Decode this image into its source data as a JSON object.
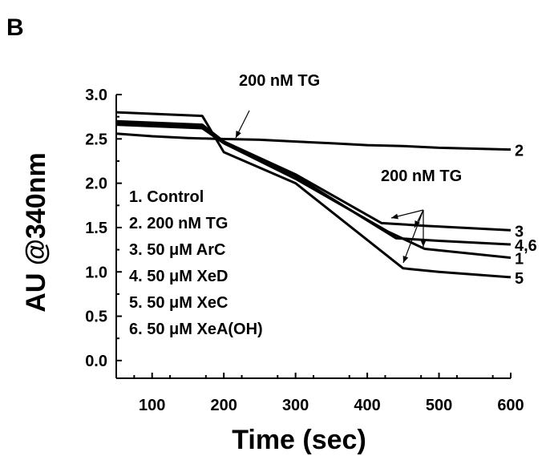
{
  "chart_data": {
    "type": "line",
    "panel_label": "B",
    "xlabel": "Time (sec)",
    "ylabel": "AU @340nm",
    "xlim": [
      50,
      600
    ],
    "ylim": [
      -0.2,
      3.0
    ],
    "xticks": [
      "100",
      "200",
      "300",
      "400",
      "500",
      "600"
    ],
    "yticks": [
      "0.0",
      "0.5",
      "1.0",
      "1.5",
      "2.0",
      "2.5",
      "3.0"
    ],
    "grid": false,
    "legend": [
      "1. Control",
      "2. 200 nM TG",
      "3. 50 μM ArC",
      "4. 50 μM XeD",
      "5. 50 μM XeC",
      "6. 50 μM XeA(OH)"
    ],
    "annotations": [
      "200 nM TG",
      "200 nM TG"
    ],
    "series": [
      {
        "label": "1",
        "x": [
          50,
          170,
          200,
          300,
          430,
          480,
          600
        ],
        "y": [
          2.66,
          2.62,
          2.45,
          2.05,
          1.45,
          1.26,
          1.16
        ]
      },
      {
        "label": "2",
        "x": [
          50,
          100,
          150,
          190,
          250,
          300,
          350,
          400,
          450,
          500,
          550,
          600
        ],
        "y": [
          2.56,
          2.53,
          2.51,
          2.5,
          2.49,
          2.47,
          2.45,
          2.43,
          2.42,
          2.4,
          2.39,
          2.38
        ]
      },
      {
        "label": "3",
        "x": [
          50,
          170,
          200,
          300,
          420,
          480,
          600
        ],
        "y": [
          2.68,
          2.64,
          2.47,
          2.1,
          1.55,
          1.52,
          1.47
        ]
      },
      {
        "label": "4,6",
        "x": [
          50,
          170,
          200,
          300,
          440,
          500,
          600
        ],
        "y": [
          2.7,
          2.66,
          2.47,
          2.08,
          1.38,
          1.35,
          1.31
        ]
      },
      {
        "label": "5",
        "x": [
          50,
          170,
          200,
          300,
          450,
          500,
          600
        ],
        "y": [
          2.8,
          2.76,
          2.35,
          2.0,
          1.04,
          1.0,
          0.94
        ]
      }
    ]
  }
}
